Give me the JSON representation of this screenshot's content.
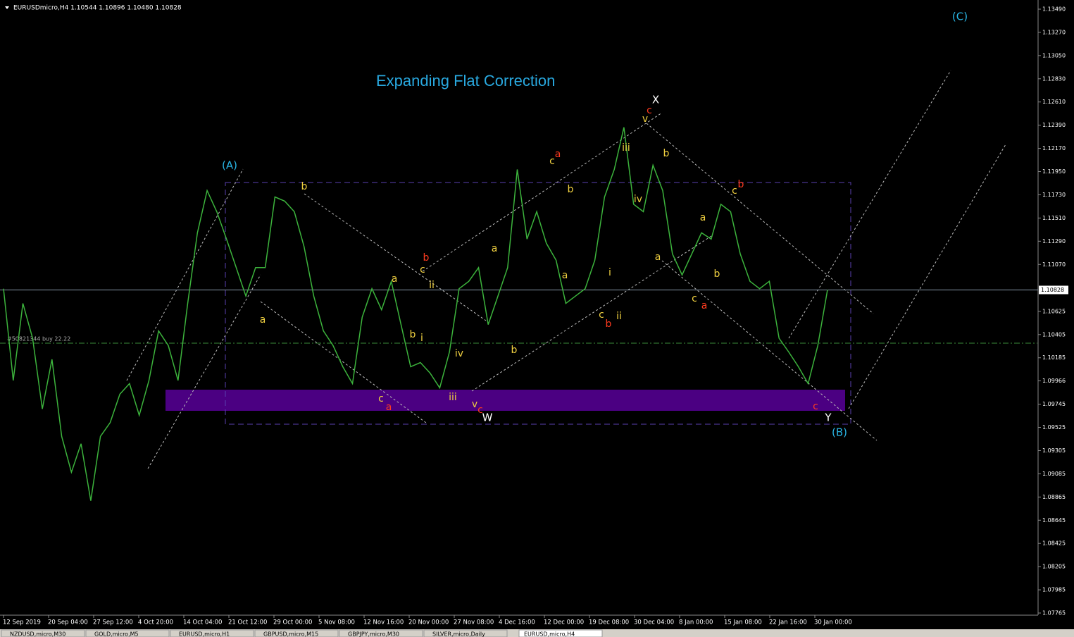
{
  "header": {
    "symbol_info": "EURUSDmicro,H4  1.10544 1.10896 1.10480 1.10828"
  },
  "chart_title": "Expanding Flat Correction",
  "order_label": "#50821344 buy 22.22",
  "current_price": {
    "value": 1.10828,
    "label": "1.10828"
  },
  "price_series": [
    1.1084,
    1.0997,
    1.107,
    1.1037,
    1.097,
    1.1017,
    1.0944,
    1.091,
    1.0937,
    1.0883,
    1.0944,
    1.0957,
    1.0984,
    1.0994,
    1.0964,
    1.0997,
    1.1044,
    1.103,
    1.0997,
    1.107,
    1.1137,
    1.1177,
    1.1157,
    1.1131,
    1.1104,
    1.1077,
    1.1104,
    1.1104,
    1.1171,
    1.1167,
    1.1157,
    1.1124,
    1.1077,
    1.1044,
    1.103,
    1.101,
    1.0994,
    1.1057,
    1.1084,
    1.1064,
    1.1091,
    1.105,
    1.101,
    1.1014,
    1.1004,
    1.099,
    1.1024,
    1.1084,
    1.1091,
    1.1104,
    1.105,
    1.1077,
    1.1104,
    1.1197,
    1.1131,
    1.1157,
    1.1127,
    1.1111,
    1.107,
    1.1077,
    1.1084,
    1.1111,
    1.1171,
    1.1197,
    1.1237,
    1.1164,
    1.1157,
    1.1201,
    1.1177,
    1.1117,
    1.1097,
    1.1117,
    1.1137,
    1.1131,
    1.1164,
    1.1157,
    1.1117,
    1.1091,
    1.1084,
    1.1091,
    1.1037,
    1.1024,
    1.101,
    1.0994,
    1.103,
    1.1083
  ],
  "ylim": [
    1.07765,
    1.1349
  ],
  "yticks": [
    {
      "value": 1.1349,
      "label": "1.13490"
    },
    {
      "value": 1.1327,
      "label": "1.13270"
    },
    {
      "value": 1.1305,
      "label": "1.13050"
    },
    {
      "value": 1.1283,
      "label": "1.12830"
    },
    {
      "value": 1.1261,
      "label": "1.12610"
    },
    {
      "value": 1.1239,
      "label": "1.12390"
    },
    {
      "value": 1.1217,
      "label": "1.12170"
    },
    {
      "value": 1.1195,
      "label": "1.11950"
    },
    {
      "value": 1.1173,
      "label": "1.11730"
    },
    {
      "value": 1.1151,
      "label": "1.11510"
    },
    {
      "value": 1.1129,
      "label": "1.11290"
    },
    {
      "value": 1.1107,
      "label": "1.11070"
    },
    1.10625,
    1.10405,
    1.10185,
    1.09966,
    1.09745,
    1.09525,
    1.09305,
    1.09085,
    1.08865,
    1.08645,
    1.08425,
    1.08205,
    1.07985,
    1.07765
  ],
  "time_labels": [
    "12 Sep 2019",
    "20 Sep 04:00",
    "27 Sep 12:00",
    "4 Oct 20:00",
    "14 Oct 04:00",
    "21 Oct 12:00",
    "29 Oct 00:00",
    "5 Nov 08:00",
    "12 Nov 16:00",
    "20 Nov 00:00",
    "27 Nov 08:00",
    "4 Dec 16:00",
    "12 Dec 00:00",
    "19 Dec 08:00",
    "30 Dec 04:00",
    "8 Jan 00:00",
    "15 Jan 08:00",
    "22 Jan 16:00",
    "30 Jan 00:00"
  ],
  "annotations": [
    "(A)",
    "(B)",
    "(C)",
    "X",
    "W",
    "Y",
    "a",
    "b",
    "c",
    "a",
    "a",
    "b",
    "i",
    "c",
    "b",
    "ii",
    "iv",
    "iii",
    "v",
    "c",
    "a",
    "b",
    "c",
    "a",
    "b",
    "a",
    "c",
    "b",
    "ii",
    "i",
    "iv",
    "iii",
    "v",
    "c",
    "b",
    "a",
    "c",
    "a",
    "a",
    "b",
    "c",
    "b",
    "c"
  ],
  "tabs": [
    "NZDUSD,micro,M30",
    "GOLD,micro,M5",
    "EURUSD,micro,H1",
    "GBPUSD,micro,M15",
    "GBPJPY,micro,M30",
    "SILVER,micro,Daily",
    "EURUSD,micro,H4"
  ]
}
